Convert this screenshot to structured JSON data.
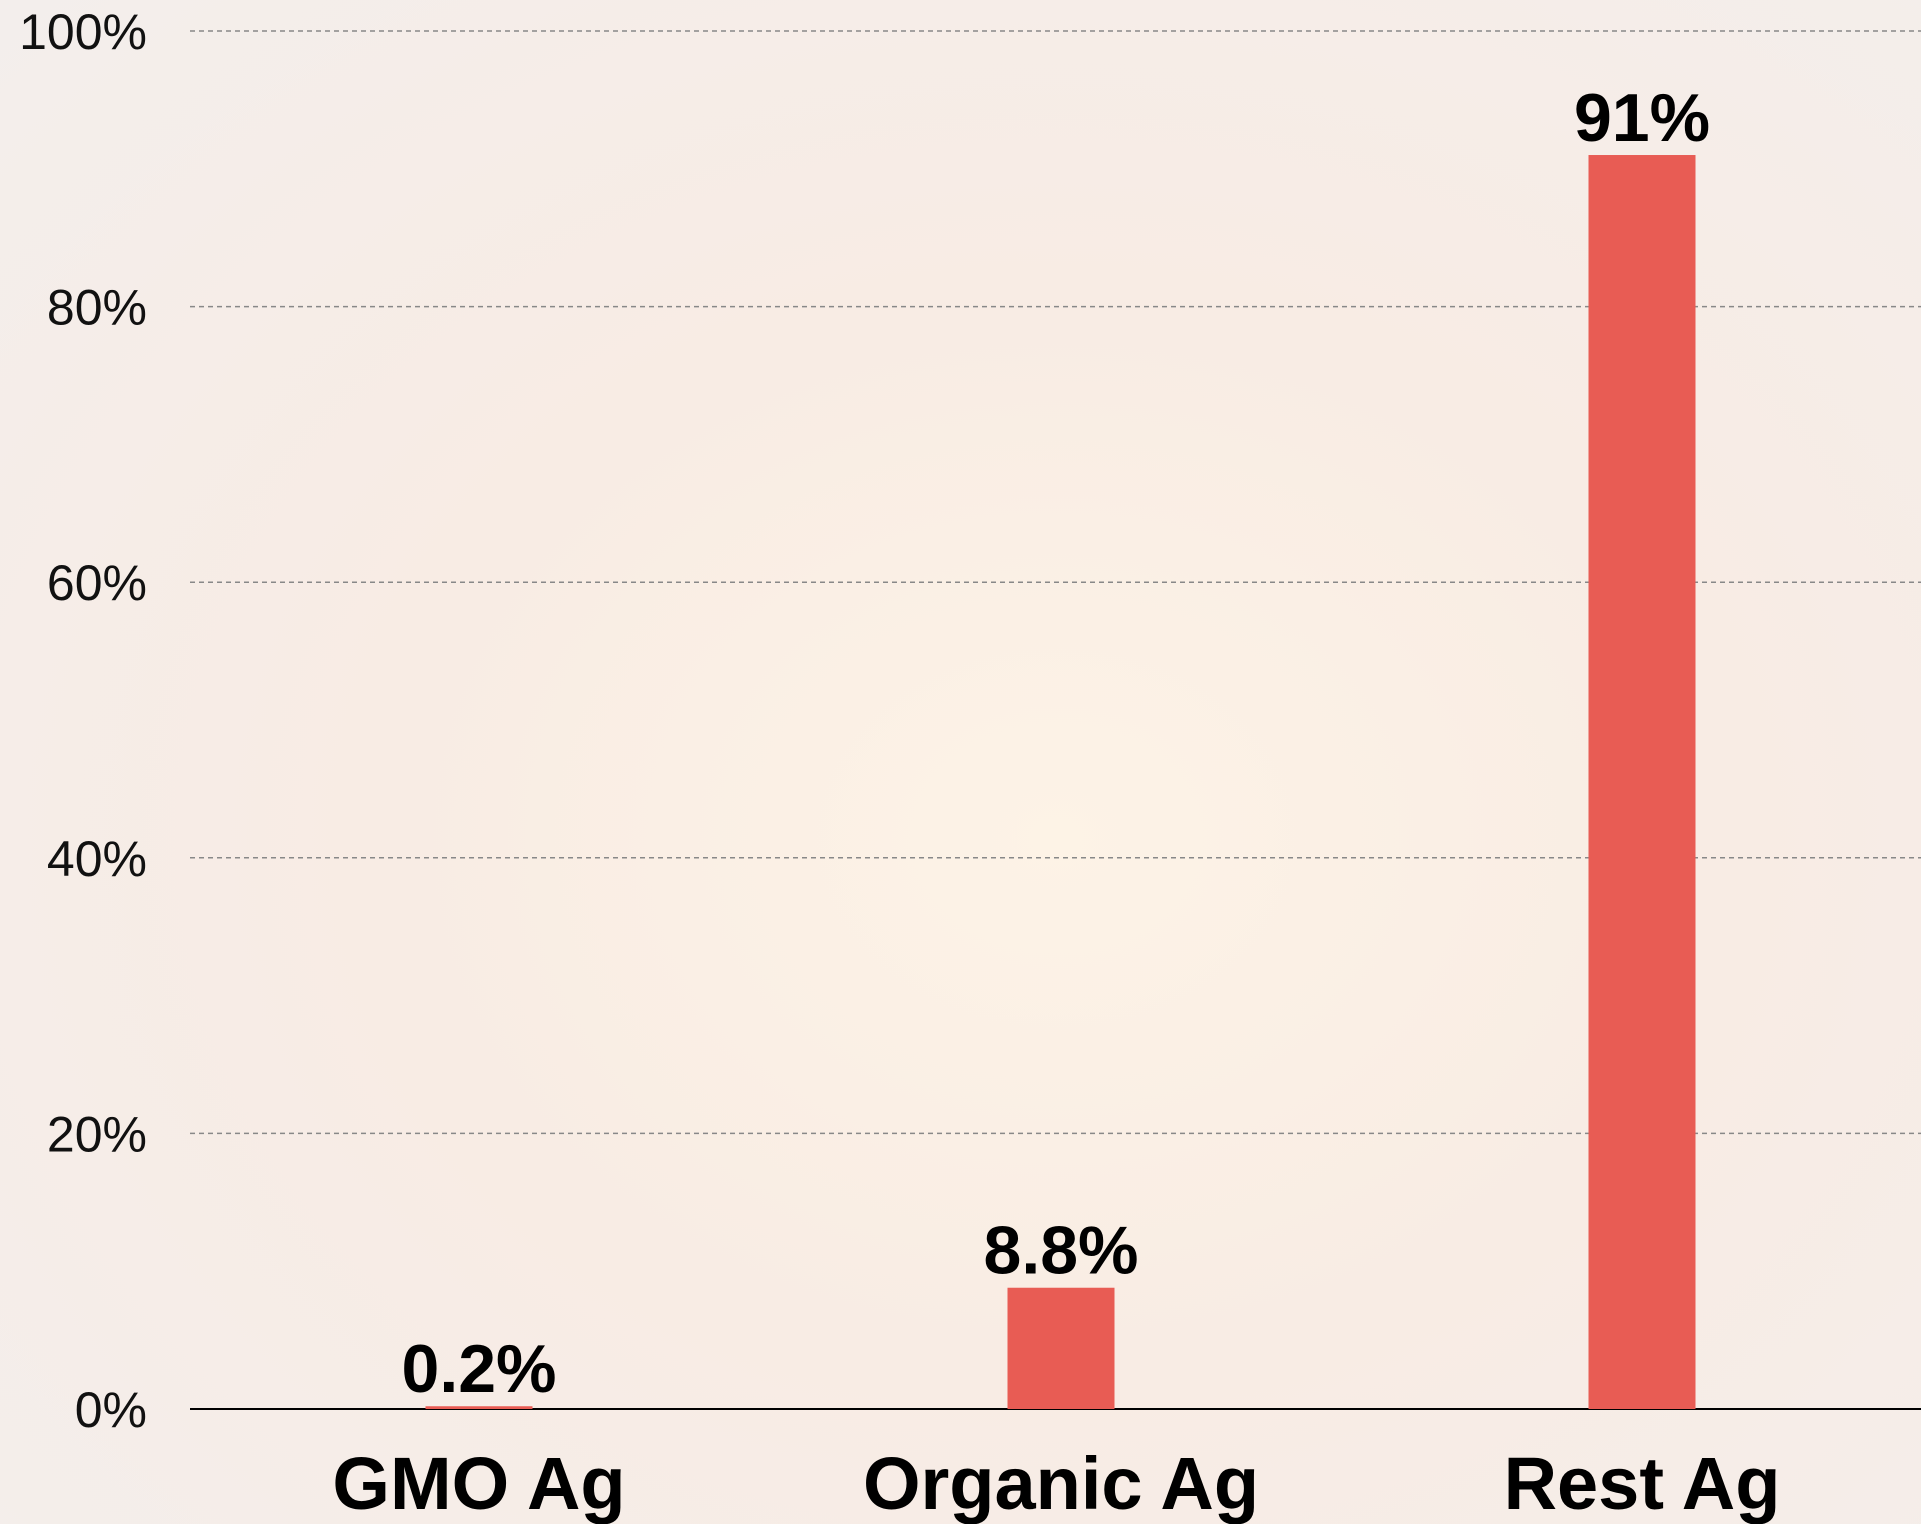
{
  "chart_data": {
    "type": "bar",
    "categories": [
      "GMO Ag",
      "Organic Ag",
      "Rest Ag"
    ],
    "values": [
      0.2,
      8.8,
      91
    ],
    "value_labels": [
      "0.2%",
      "8.8%",
      "91%"
    ],
    "color": "#e85c54",
    "ylim": [
      0,
      100
    ],
    "yticks": [
      {
        "value": 0,
        "label": "0%"
      },
      {
        "value": 20,
        "label": "20%"
      },
      {
        "value": 40,
        "label": "40%"
      },
      {
        "value": 60,
        "label": "60%"
      },
      {
        "value": 80,
        "label": "80%"
      },
      {
        "value": 100,
        "label": "100%"
      }
    ],
    "grid": true
  }
}
